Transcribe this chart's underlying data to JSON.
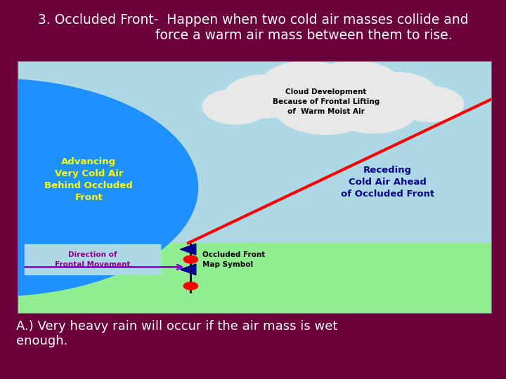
{
  "bg_color": "#6B003B",
  "title_line1": "3. Occluded Front-  Happen when two cold air masses collide and",
  "title_line2": "                        force a warm air mass between them to rise.",
  "title_color": "#FFFFFF",
  "title_fontsize": 13.5,
  "subtitle_text": "    A.) Very heavy rain will occur if the air mass is wet\n    enough.",
  "subtitle_color": "#FFFFFF",
  "subtitle_fontsize": 13,
  "sky_color": "#ADD8E6",
  "ground_color": "#90EE90",
  "blue_circle_color": "#1E90FF",
  "advancing_text": "Advancing\nVery Cold Air\nBehind Occluded\nFront",
  "advancing_color": "#FFFF00",
  "receding_text": "Receding\nCold Air Ahead\nof Occluded Front",
  "receding_color": "#00008B",
  "cloud_text": "Cloud Development\nBecause of Frontal Lifting\nof  Warm Moist Air",
  "cloud_text_color": "#000000",
  "direction_text": "Direction of\nFrontal Movement",
  "direction_color": "#8B008B",
  "occluded_symbol_text": "Occluded Front\nMap Symbol",
  "occluded_symbol_color": "#000000",
  "front_line_color": "#FF0000",
  "arrow_color": "#9400D3",
  "symbol_blue": "#00008B",
  "symbol_red": "#FF0000",
  "cloud_circles": [
    [
      5.2,
      8.6,
      0.85
    ],
    [
      6.1,
      9.0,
      1.0
    ],
    [
      7.1,
      9.0,
      1.0
    ],
    [
      8.0,
      8.7,
      0.85
    ],
    [
      8.7,
      8.3,
      0.7
    ],
    [
      4.6,
      8.2,
      0.7
    ],
    [
      6.5,
      8.2,
      1.1
    ],
    [
      7.5,
      8.1,
      0.95
    ]
  ]
}
